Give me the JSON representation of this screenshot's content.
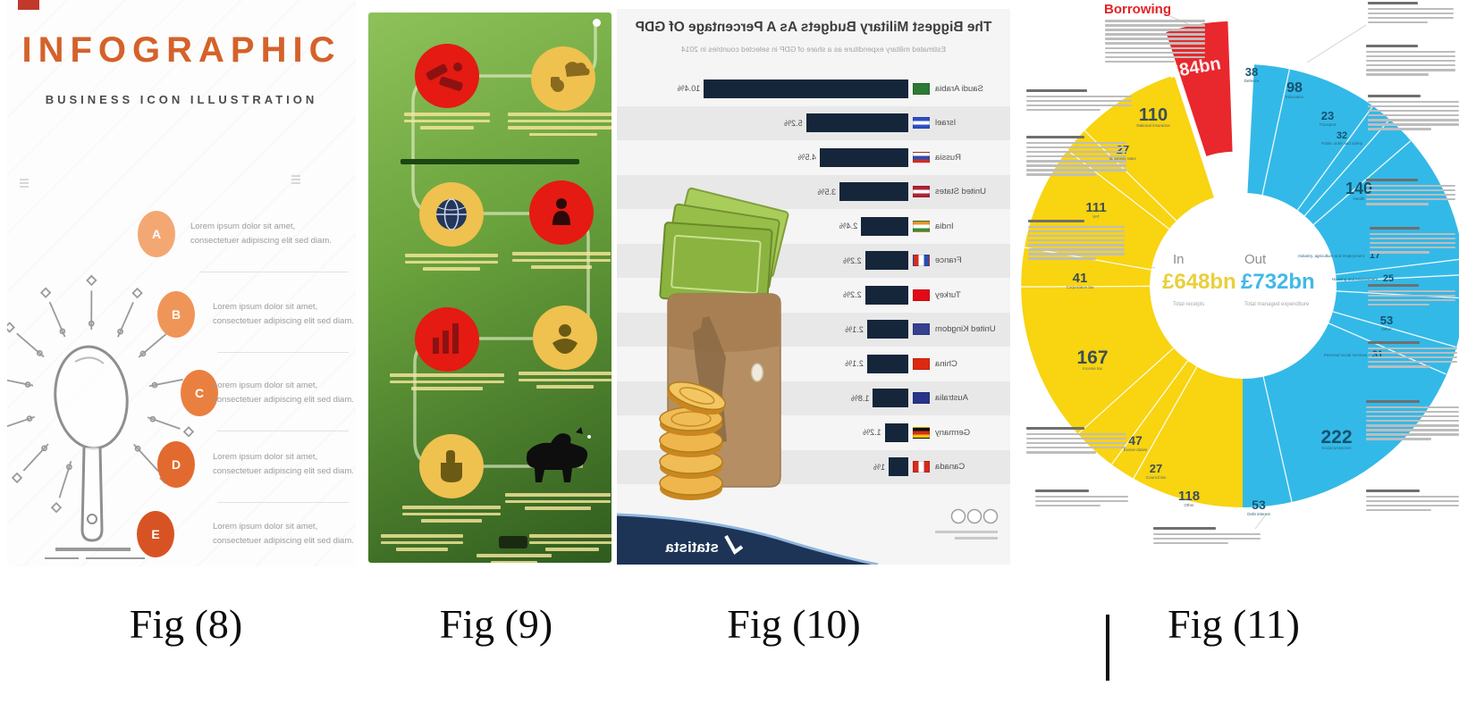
{
  "captions": [
    "Fig (8)",
    "Fig (9)",
    "Fig (10)",
    "Fig (11)"
  ],
  "fig8": {
    "title": "INFOGRAPHIC",
    "subtitle": "BUSINESS ICON ILLUSTRATION",
    "accent_color": "#D4622A",
    "items": [
      {
        "letter": "A",
        "color": "#F3A874",
        "line1": "Lorem ipsum dolor sit amet,",
        "line2": "consectetuer adipiscing elit sed diam."
      },
      {
        "letter": "B",
        "color": "#F09558",
        "line1": "Lorem ipsum dolor sit amet,",
        "line2": "consectetuer adipiscing elit sed diam."
      },
      {
        "letter": "C",
        "color": "#EA8040",
        "line1": "Lorem ipsum dolor sit amet,",
        "line2": "consectetuer adipiscing elit sed diam."
      },
      {
        "letter": "D",
        "color": "#E26A2F",
        "line1": "Lorem ipsum dolor sit amet,",
        "line2": "consectetuer adipiscing elit sed diam."
      },
      {
        "letter": "E",
        "color": "#D85324",
        "line1": "Lorem ipsum dolor sit amet,",
        "line2": "consectetuer adipiscing elit sed diam."
      }
    ]
  },
  "fig9": {
    "circle_red": "#E51A12",
    "circle_yellow": "#EFC14F",
    "background_top": "#8EC159",
    "background_bottom": "#2F5C1E",
    "circles": [
      "megaphone",
      "money-cloud",
      "globe",
      "person",
      "bar-chart",
      "plant",
      "hand"
    ]
  },
  "chart_data": [
    {
      "fig": "Fig (10)",
      "type": "bar",
      "orientation": "horizontal",
      "rendered_mirrored": true,
      "title": "The Biggest Military Budgets As A Percentage Of GDP",
      "subtitle": "Estimated military expenditure as a share of GDP in selected countries in 2014",
      "categories": [
        "Saudi Arabia",
        "Israel",
        "Russia",
        "United States",
        "India",
        "France",
        "Turkey",
        "United Kingdom",
        "China",
        "Australia",
        "Germany",
        "Canada"
      ],
      "values": [
        10.4,
        5.2,
        4.5,
        3.5,
        2.4,
        2.2,
        2.2,
        2.1,
        2.1,
        1.8,
        1.2,
        1.0
      ],
      "value_labels": [
        "10.4%",
        "5.2%",
        "4.5%",
        "3.5%",
        "2.4%",
        "2.2%",
        "2.2%",
        "2.1%",
        "2.1%",
        "1.8%",
        "1.2%",
        "1%"
      ],
      "unit": "%",
      "bar_color": "#15263B",
      "source_label": "statista",
      "flags": [
        {
          "style": "solid",
          "colors": [
            "#2d7a35"
          ]
        },
        {
          "style": "h",
          "colors": [
            "#2b50c8",
            "#ffffff",
            "#2b50c8"
          ]
        },
        {
          "style": "h",
          "colors": [
            "#ffffff",
            "#2a4fae",
            "#d52b1e"
          ]
        },
        {
          "style": "h",
          "colors": [
            "#b22234",
            "#ffffff",
            "#b22234"
          ]
        },
        {
          "style": "h",
          "colors": [
            "#f0932a",
            "#ffffff",
            "#2f8f3c"
          ]
        },
        {
          "style": "v",
          "colors": [
            "#2a4fae",
            "#ffffff",
            "#d52b1e"
          ]
        },
        {
          "style": "solid",
          "colors": [
            "#e30a17"
          ]
        },
        {
          "style": "solid",
          "colors": [
            "#35418f"
          ]
        },
        {
          "style": "solid",
          "colors": [
            "#de2910"
          ]
        },
        {
          "style": "solid",
          "colors": [
            "#27348b"
          ]
        },
        {
          "style": "h",
          "colors": [
            "#111111",
            "#d52b1e",
            "#f5c400"
          ]
        },
        {
          "style": "v",
          "colors": [
            "#d52b1e",
            "#ffffff",
            "#d52b1e"
          ]
        }
      ]
    },
    {
      "fig": "Fig (11)",
      "type": "pie",
      "shape": "donut",
      "colors": {
        "in": "#F8D411",
        "out": "#33B9E8",
        "borrowing": "#E8282D"
      },
      "borrowing": {
        "label": "Borrowing",
        "value": "£84bn"
      },
      "center": {
        "in_label": "In",
        "in_value": "£648bn",
        "in_sub": "Total receipts",
        "out_label": "Out",
        "out_value": "£732bn",
        "out_sub": "Total managed expenditure"
      },
      "in_total": 648,
      "out_total": 732,
      "in_segments": [
        {
          "label": "National insurance",
          "value": 110
        },
        {
          "label": "Business rates",
          "value": 27
        },
        {
          "label": "VAT",
          "value": 111
        },
        {
          "label": "Corporation tax",
          "value": 41
        },
        {
          "label": "Income tax",
          "value": 167
        },
        {
          "label": "Excise duties",
          "value": 47
        },
        {
          "label": "Council tax",
          "value": 27
        },
        {
          "label": "Other",
          "value": 118
        }
      ],
      "out_segments": [
        {
          "label": "Defence",
          "value": 38
        },
        {
          "label": "Education",
          "value": 98
        },
        {
          "label": "Transport",
          "value": 23
        },
        {
          "label": "Public order and safety",
          "value": 32
        },
        {
          "label": "Health",
          "value": 140
        },
        {
          "label": "Industry, agriculture and employment",
          "value": 17
        },
        {
          "label": "Housing and environment",
          "value": 25
        },
        {
          "label": "Other",
          "value": 53
        },
        {
          "label": "Personal social services",
          "value": 31
        },
        {
          "label": "Social protection",
          "value": 222
        },
        {
          "label": "Debt interest",
          "value": 53
        }
      ]
    }
  ]
}
